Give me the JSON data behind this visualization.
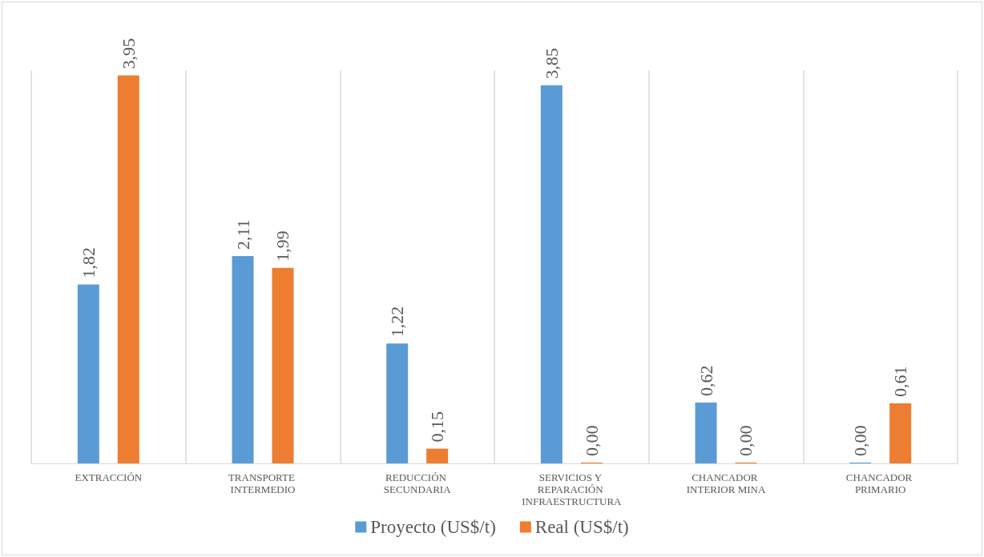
{
  "chart_data": {
    "type": "bar",
    "categories": [
      "EXTRACCIÓN",
      "TRANSPORTE INTERMEDIO",
      "REDUCCIÓN SECUNDARIA",
      "SERVICIOS Y REPARACIÓN INFRAESTRUCTURA",
      "CHANCADOR INTERIOR MINA",
      "CHANCADOR PRIMARIO"
    ],
    "series": [
      {
        "name": "Proyecto (US$/t)",
        "color": "#5b9bd5",
        "values": [
          1.82,
          2.11,
          1.22,
          3.85,
          0.62,
          0.0
        ],
        "value_labels": [
          "1,82",
          "2,11",
          "1,22",
          "3,85",
          "0,62",
          "0,00"
        ]
      },
      {
        "name": "Real (US$/t)",
        "color": "#ed7d31",
        "values": [
          3.95,
          1.99,
          0.15,
          0.0,
          0.0,
          0.61
        ],
        "value_labels": [
          "3,95",
          "1,99",
          "0,15",
          "0,00",
          "0,00",
          "0,61"
        ]
      }
    ],
    "grid": "x",
    "legend": "bottom"
  }
}
